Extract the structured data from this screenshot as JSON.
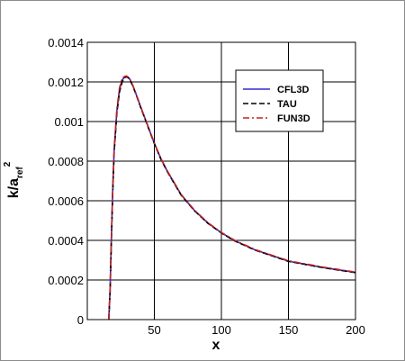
{
  "chart_data": {
    "type": "line",
    "xlabel": "x",
    "ylabel": {
      "base": "k/a",
      "sub": "ref",
      "sup": "2"
    },
    "xlim": [
      0,
      200
    ],
    "ylim": [
      0,
      0.0014
    ],
    "x_ticks": [
      50,
      100,
      150,
      200
    ],
    "x_tick_labels": [
      "50",
      "100",
      "150",
      "200"
    ],
    "y_ticks": [
      0,
      0.0002,
      0.0004,
      0.0006,
      0.0008,
      0.001,
      0.0012,
      0.0014
    ],
    "y_tick_labels": [
      "0",
      "0.0002",
      "0.0004",
      "0.0006",
      "0.0008",
      "0.001",
      "0.0012",
      "0.0014"
    ],
    "grid": true,
    "legend_position": "top-right",
    "series": [
      {
        "name": "CFL3D",
        "color": "#2b2bd9",
        "dash": "solid",
        "x": [
          16,
          17,
          18,
          19,
          20,
          22,
          24,
          26,
          28,
          29,
          30,
          31,
          32,
          34,
          36,
          40,
          45,
          50,
          55,
          60,
          70,
          80,
          90,
          100,
          110,
          125,
          150,
          175,
          200
        ],
        "y": [
          0,
          0.00015,
          0.00042,
          0.00066,
          0.00085,
          0.00105,
          0.00116,
          0.00121,
          0.001225,
          0.001228,
          0.001225,
          0.00122,
          0.00121,
          0.00118,
          0.001145,
          0.00107,
          0.00098,
          0.00089,
          0.00081,
          0.000745,
          0.00063,
          0.00055,
          0.000487,
          0.000438,
          0.000398,
          0.000352,
          0.000295,
          0.000264,
          0.000238
        ]
      },
      {
        "name": "TAU",
        "color": "#000000",
        "dash": "dashed",
        "x": [
          16,
          17,
          18,
          19,
          20,
          22,
          24,
          26,
          28,
          29,
          30,
          31,
          32,
          34,
          36,
          40,
          45,
          50,
          55,
          60,
          70,
          80,
          90,
          100,
          110,
          125,
          150,
          175,
          200
        ],
        "y": [
          0,
          0.00014,
          0.00041,
          0.00065,
          0.00084,
          0.00104,
          0.00115,
          0.0012,
          0.001222,
          0.001226,
          0.001223,
          0.001218,
          0.001208,
          0.001178,
          0.001143,
          0.001068,
          0.000978,
          0.000888,
          0.000808,
          0.000743,
          0.000628,
          0.000549,
          0.000486,
          0.000437,
          0.000397,
          0.000351,
          0.000294,
          0.000263,
          0.000237
        ]
      },
      {
        "name": "FUN3D",
        "color": "#c8201e",
        "dash": "dashdot",
        "x": [
          16,
          17,
          18,
          19,
          20,
          22,
          24,
          26,
          28,
          29,
          30,
          31,
          32,
          34,
          36,
          40,
          45,
          50,
          55,
          60,
          70,
          80,
          90,
          100,
          110,
          125,
          150,
          175,
          200
        ],
        "y": [
          0,
          0.00016,
          0.00043,
          0.00067,
          0.00086,
          0.00106,
          0.00117,
          0.00122,
          0.001228,
          0.00123,
          0.001227,
          0.001222,
          0.001212,
          0.001182,
          0.001147,
          0.001072,
          0.000982,
          0.000892,
          0.000812,
          0.000747,
          0.000632,
          0.000552,
          0.000489,
          0.00044,
          0.0004,
          0.000354,
          0.000297,
          0.000266,
          0.00024
        ]
      }
    ]
  }
}
